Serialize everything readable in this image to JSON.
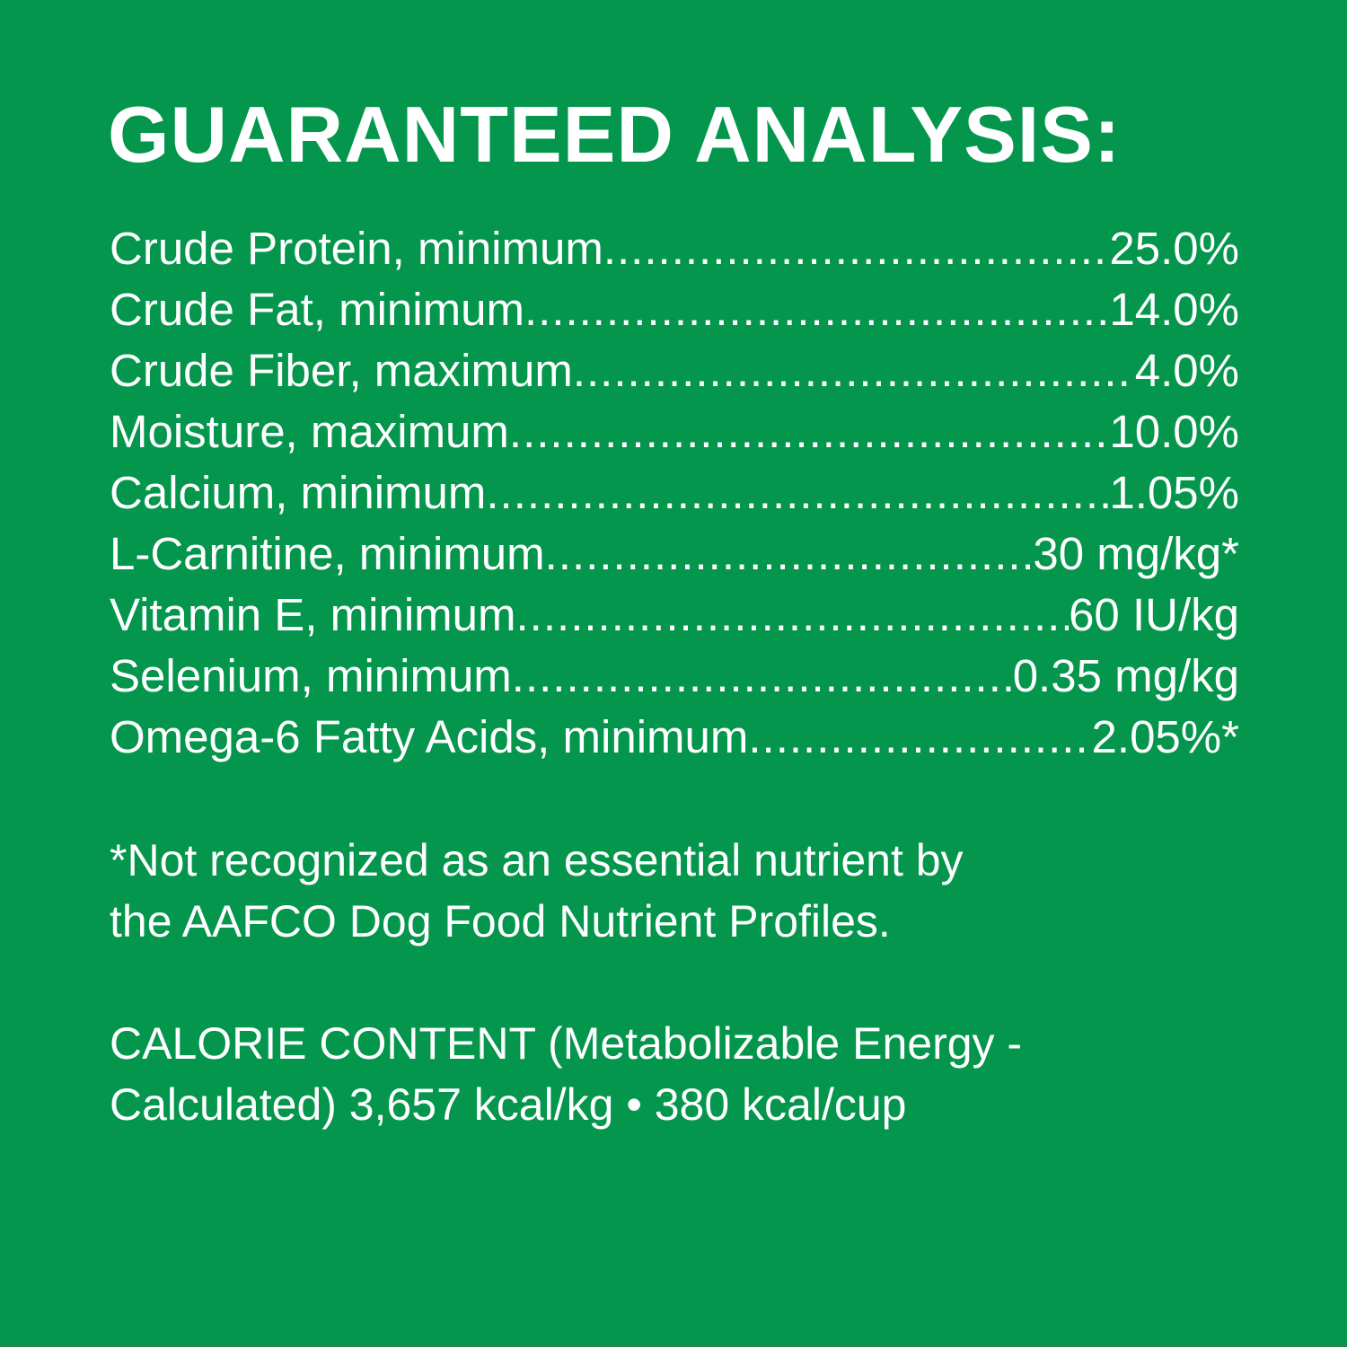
{
  "title": "GUARANTEED ANALYSIS:",
  "rows": [
    {
      "label": "Crude Protein, minimum",
      "value": "25.0%"
    },
    {
      "label": "Crude Fat, minimum",
      "value": "14.0%"
    },
    {
      "label": "Crude Fiber, maximum",
      "value": "4.0%"
    },
    {
      "label": "Moisture, maximum",
      "value": "10.0%"
    },
    {
      "label": "Calcium, minimum",
      "value": "1.05%"
    },
    {
      "label": "L-Carnitine, minimum",
      "value": "30 mg/kg*"
    },
    {
      "label": "Vitamin E, minimum",
      "value": "60 IU/kg"
    },
    {
      "label": "Selenium, minimum",
      "value": "0.35 mg/kg"
    },
    {
      "label": "Omega-6 Fatty Acids, minimum",
      "value": "2.05%*"
    }
  ],
  "footnote": {
    "line1": "*Not recognized as an essential nutrient by",
    "line2": "the AAFCO Dog Food Nutrient Profiles."
  },
  "calorie": {
    "line1": "CALORIE CONTENT (Metabolizable Energy -",
    "line2": "Calculated) 3,657 kcal/kg • 380 kcal/cup"
  },
  "colors": {
    "background": "#03964c",
    "text": "#ffffff"
  }
}
